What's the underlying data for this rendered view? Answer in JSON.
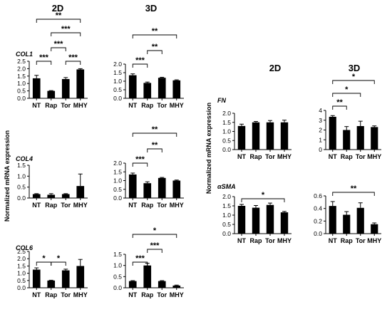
{
  "figure": {
    "col_titles_left": [
      "2D",
      "3D"
    ],
    "col_titles_right": [
      "2D",
      "3D"
    ],
    "ylabel_left": "Normalized mRNA expression",
    "ylabel_right": "Normalized mRNA expression"
  },
  "chart_data": [
    {
      "id": "col1-2d",
      "type": "bar",
      "gene": "COL1",
      "categories": [
        "NT",
        "Rap",
        "Tor",
        "MHY"
      ],
      "values": [
        1.35,
        0.5,
        1.3,
        1.95
      ],
      "errors": [
        0.2,
        0.02,
        0.1,
        0.05
      ],
      "ylim": [
        0,
        2.5
      ],
      "yticks": [
        "0.0",
        "0.5",
        "1.0",
        "1.5",
        "2.0",
        "2.5"
      ],
      "significance": [
        {
          "from": 0,
          "to": 3,
          "label": "**"
        },
        {
          "from": 1,
          "to": 3,
          "label": "***"
        },
        {
          "from": 1,
          "to": 2,
          "label": "***"
        },
        {
          "from": 0,
          "to": 1,
          "label": "***"
        },
        {
          "from": 2,
          "to": 3,
          "label": "***"
        }
      ]
    },
    {
      "id": "col1-3d",
      "type": "bar",
      "gene": "",
      "categories": [
        "NT",
        "Rap",
        "Tor",
        "MHY"
      ],
      "values": [
        1.35,
        0.9,
        1.2,
        1.05
      ],
      "errors": [
        0.08,
        0.05,
        0.03,
        0.03
      ],
      "ylim": [
        0,
        2.0
      ],
      "yticks": [
        "0.0",
        "0.5",
        "1.0",
        "1.5",
        "2.0"
      ],
      "significance": [
        {
          "from": 0,
          "to": 3,
          "label": "**"
        },
        {
          "from": 1,
          "to": 2,
          "label": "**"
        },
        {
          "from": 0,
          "to": 1,
          "label": "***"
        }
      ]
    },
    {
      "id": "col4-2d",
      "type": "bar",
      "gene": "COL4",
      "categories": [
        "NT",
        "Rap",
        "Tor",
        "MHY"
      ],
      "values": [
        0.18,
        0.15,
        0.18,
        0.55
      ],
      "errors": [
        0.02,
        0.05,
        0.02,
        0.55
      ],
      "ylim": [
        0,
        1.5
      ],
      "yticks": [
        "0.0",
        "0.5",
        "1.0",
        "1.5"
      ],
      "significance": []
    },
    {
      "id": "col4-3d",
      "type": "bar",
      "gene": "",
      "categories": [
        "NT",
        "Rap",
        "Tor",
        "MHY"
      ],
      "values": [
        1.35,
        0.85,
        1.15,
        1.0
      ],
      "errors": [
        0.08,
        0.08,
        0.03,
        0.03
      ],
      "ylim": [
        0,
        2.0
      ],
      "yticks": [
        "0.0",
        "0.5",
        "1.0",
        "1.5",
        "2.0"
      ],
      "significance": [
        {
          "from": 0,
          "to": 3,
          "label": "**"
        },
        {
          "from": 1,
          "to": 2,
          "label": "**"
        },
        {
          "from": 0,
          "to": 1,
          "label": "***"
        }
      ]
    },
    {
      "id": "col6-2d",
      "type": "bar",
      "gene": "COL6",
      "categories": [
        "NT",
        "Rap",
        "Tor",
        "MHY"
      ],
      "values": [
        1.25,
        0.5,
        1.2,
        1.5
      ],
      "errors": [
        0.12,
        0.02,
        0.08,
        0.45
      ],
      "ylim": [
        0,
        2.5
      ],
      "yticks": [
        "0.0",
        "0.5",
        "1.0",
        "1.5",
        "2.0",
        "2.5"
      ],
      "significance": [
        {
          "from": 0,
          "to": 1,
          "label": "*"
        },
        {
          "from": 1,
          "to": 2,
          "label": "*"
        }
      ]
    },
    {
      "id": "col6-3d",
      "type": "bar",
      "gene": "",
      "categories": [
        "NT",
        "Rap",
        "Tor",
        "MHY"
      ],
      "values": [
        0.3,
        1.0,
        0.3,
        0.1
      ],
      "errors": [
        0.02,
        0.1,
        0.02,
        0.02
      ],
      "ylim": [
        0,
        1.5
      ],
      "yticks": [
        "0.0",
        "0.5",
        "1.0",
        "1.5"
      ],
      "significance": [
        {
          "from": 0,
          "to": 3,
          "label": "*"
        },
        {
          "from": 1,
          "to": 2,
          "label": "***"
        },
        {
          "from": 0,
          "to": 1,
          "label": "***"
        }
      ]
    },
    {
      "id": "fn-2d",
      "type": "bar",
      "gene": "FN",
      "categories": [
        "NT",
        "Rap",
        "Tor",
        "MHY"
      ],
      "values": [
        1.3,
        1.5,
        1.5,
        1.5
      ],
      "errors": [
        0.1,
        0.05,
        0.1,
        0.12
      ],
      "ylim": [
        0,
        2.0
      ],
      "yticks": [
        "0.0",
        "0.5",
        "1.0",
        "1.5",
        "2.0"
      ],
      "significance": []
    },
    {
      "id": "fn-3d",
      "type": "bar",
      "gene": "",
      "categories": [
        "NT",
        "Rap",
        "Tor",
        "MHY"
      ],
      "values": [
        3.35,
        2.0,
        2.4,
        2.3
      ],
      "errors": [
        0.12,
        0.35,
        0.5,
        0.12
      ],
      "ylim": [
        0,
        4
      ],
      "yticks": [
        "0",
        "1",
        "2",
        "3",
        "4"
      ],
      "significance": [
        {
          "from": 0,
          "to": 3,
          "label": "*"
        },
        {
          "from": 0,
          "to": 2,
          "label": "*"
        },
        {
          "from": 0,
          "to": 1,
          "label": "**"
        }
      ]
    },
    {
      "id": "asma-2d",
      "type": "bar",
      "gene": "αSMA",
      "categories": [
        "NT",
        "Rap",
        "Tor",
        "MHY"
      ],
      "values": [
        1.5,
        1.4,
        1.55,
        1.15
      ],
      "errors": [
        0.08,
        0.12,
        0.1,
        0.05
      ],
      "ylim": [
        0,
        2.0
      ],
      "yticks": [
        "0.0",
        "0.5",
        "1.0",
        "1.5",
        "2.0"
      ],
      "significance": [
        {
          "from": 0,
          "to": 3,
          "label": "*"
        }
      ]
    },
    {
      "id": "asma-3d",
      "type": "bar",
      "gene": "",
      "categories": [
        "NT",
        "Rap",
        "Tor",
        "MHY"
      ],
      "values": [
        0.44,
        0.3,
        0.41,
        0.15
      ],
      "errors": [
        0.07,
        0.05,
        0.08,
        0.02
      ],
      "ylim": [
        0,
        0.6
      ],
      "yticks": [
        "0.0",
        "0.2",
        "0.4",
        "0.6"
      ],
      "significance": [
        {
          "from": 0,
          "to": 3,
          "label": "**"
        }
      ]
    }
  ]
}
